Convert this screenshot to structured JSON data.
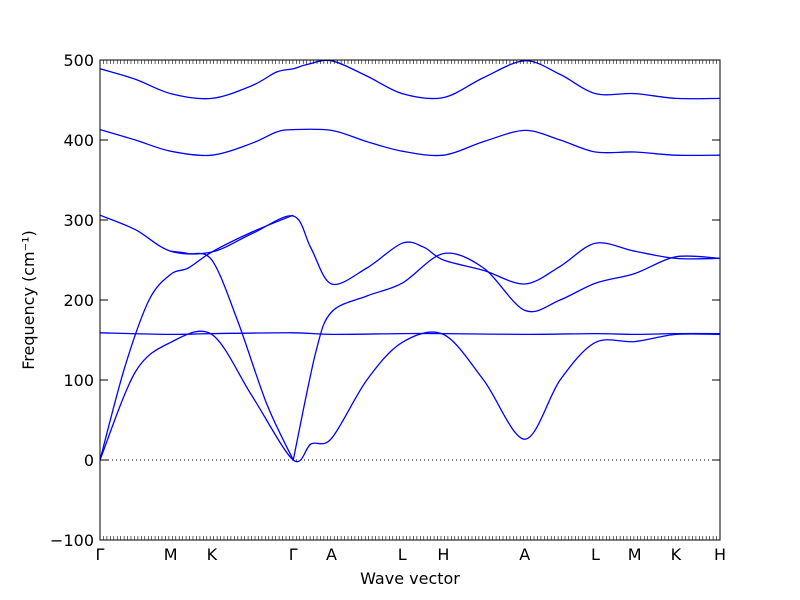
{
  "chart_data": {
    "type": "line",
    "title": "",
    "xlabel": "Wave vector",
    "ylabel": "Frequency (cm⁻¹)",
    "ylim": [
      -100,
      500
    ],
    "yticks": [
      -100,
      0,
      100,
      200,
      300,
      400,
      500
    ],
    "xlim": [
      0,
      6.32
    ],
    "x_ticks": [
      {
        "label": "Γ",
        "x": 0.0
      },
      {
        "label": "M",
        "x": 0.72
      },
      {
        "label": "K",
        "x": 1.14
      },
      {
        "label": "Γ",
        "x": 1.97
      },
      {
        "label": "A",
        "x": 2.36
      },
      {
        "label": "L",
        "x": 3.08
      },
      {
        "label": "H",
        "x": 3.5
      },
      {
        "label": "A",
        "x": 4.33
      },
      {
        "label": "L",
        "x": 5.05
      },
      {
        "label": "M",
        "x": 5.45
      },
      {
        "label": "K",
        "x": 5.87
      },
      {
        "label": "H",
        "x": 6.32
      }
    ],
    "zero_line": true,
    "grid": false,
    "line_color": "#0000ff",
    "series": [
      {
        "x": [
          0,
          0.36,
          0.72,
          1.14,
          1.55,
          1.8,
          1.97,
          2.1,
          2.36,
          2.72,
          3.08,
          3.5,
          3.91,
          4.33,
          4.69,
          5.05,
          5.45,
          5.87,
          6.32
        ],
        "y": [
          489,
          476,
          458,
          452,
          468,
          485,
          489,
          494,
          499,
          480,
          458,
          453,
          478,
          499,
          482,
          458,
          458,
          452,
          452
        ]
      },
      {
        "x": [
          0,
          0.36,
          0.72,
          1.14,
          1.55,
          1.8,
          1.97,
          2.36,
          2.72,
          3.08,
          3.5,
          3.91,
          4.33,
          4.69,
          5.05,
          5.45,
          5.87,
          6.32
        ],
        "y": [
          413,
          400,
          386,
          381,
          396,
          410,
          413,
          412,
          398,
          386,
          381,
          398,
          412,
          400,
          385,
          385,
          381,
          381
        ]
      },
      {
        "x": [
          0,
          0.36,
          0.72,
          1.14,
          1.55,
          1.97,
          2.15,
          2.36,
          2.72,
          3.08,
          3.3,
          3.5,
          3.91,
          4.33,
          4.69,
          5.05,
          5.45,
          5.87,
          6.32
        ],
        "y": [
          306,
          288,
          261,
          260,
          283,
          305,
          265,
          220,
          240,
          271,
          266,
          250,
          237,
          220,
          242,
          271,
          261,
          252,
          252
        ]
      },
      {
        "x": [
          0,
          0.25,
          0.5,
          0.72,
          0.9,
          1.14,
          1.55,
          1.97
        ],
        "y": [
          0,
          115,
          200,
          232,
          240,
          260,
          285,
          306
        ]
      },
      {
        "x": [
          0.72,
          0.9,
          1.14,
          1.4,
          1.7,
          1.97
        ],
        "y": [
          261,
          258,
          250,
          175,
          70,
          0
        ]
      },
      {
        "x": [
          1.97,
          2.2,
          2.36,
          2.72,
          3.08,
          3.5,
          3.91,
          4.33,
          4.69,
          5.05,
          5.45,
          5.87,
          6.32
        ],
        "y": [
          0,
          135,
          185,
          205,
          221,
          258,
          240,
          187,
          200,
          221,
          233,
          254,
          252
        ]
      },
      {
        "x": [
          0,
          0.72,
          1.14,
          1.97,
          2.36,
          3.08,
          3.5,
          4.33,
          5.05,
          5.45,
          5.87,
          6.32
        ],
        "y": [
          159,
          157,
          158,
          159,
          157,
          158,
          158,
          157,
          158,
          157,
          158,
          158
        ]
      },
      {
        "x": [
          0,
          0.36,
          0.72,
          1.14,
          1.55,
          1.97,
          2.15,
          2.36,
          2.72,
          3.08,
          3.5,
          3.91,
          4.33,
          4.69,
          5.05,
          5.45,
          5.87,
          6.32
        ],
        "y": [
          0,
          110,
          147,
          157,
          80,
          0,
          20,
          27,
          100,
          147,
          157,
          100,
          26,
          100,
          147,
          148,
          157,
          157
        ]
      }
    ]
  }
}
